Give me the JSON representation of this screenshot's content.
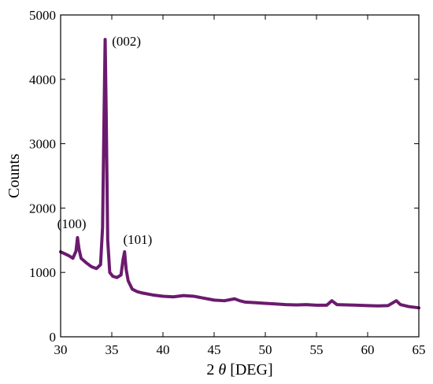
{
  "chart_data": {
    "type": "line",
    "title": "",
    "xlabel_prefix": "2 ",
    "xlabel_symbol": "θ",
    "xlabel_suffix": " [DEG]",
    "ylabel": "Counts",
    "xlim": [
      30,
      65
    ],
    "ylim": [
      0,
      5000
    ],
    "xticks": [
      30,
      35,
      40,
      45,
      50,
      55,
      60,
      65
    ],
    "yticks": [
      0,
      1000,
      2000,
      3000,
      4000,
      5000
    ],
    "grid": false,
    "line_color": "#6b1a6e",
    "series": [
      {
        "x": [
          30.0,
          30.4,
          30.8,
          31.2,
          31.5,
          31.65,
          31.8,
          32.0,
          32.5,
          33.0,
          33.5,
          33.9,
          34.1,
          34.25,
          34.35,
          34.45,
          34.6,
          34.8,
          35.1,
          35.5,
          35.9,
          36.1,
          36.25,
          36.4,
          36.6,
          37.0,
          37.5,
          38.0,
          39.0,
          40.0,
          41.0,
          42.0,
          43.0,
          44.0,
          45.0,
          46.0,
          47.0,
          47.5,
          48.0,
          49.0,
          50.0,
          51.0,
          52.0,
          53.0,
          54.0,
          55.0,
          56.0,
          56.5,
          57.0,
          58.0,
          59.0,
          60.0,
          61.0,
          62.0,
          62.8,
          63.2,
          64.0,
          65.0
        ],
        "y": [
          1320,
          1290,
          1260,
          1220,
          1330,
          1540,
          1360,
          1220,
          1150,
          1090,
          1060,
          1120,
          1700,
          3500,
          4620,
          3500,
          1500,
          1000,
          940,
          920,
          960,
          1200,
          1320,
          1050,
          870,
          740,
          700,
          680,
          650,
          630,
          620,
          640,
          630,
          600,
          570,
          560,
          590,
          560,
          540,
          530,
          520,
          510,
          500,
          495,
          500,
          490,
          490,
          560,
          500,
          495,
          490,
          485,
          480,
          485,
          560,
          500,
          470,
          450
        ]
      }
    ],
    "annotations": [
      {
        "text": "(100)",
        "x": 31.7,
        "y": 1540
      },
      {
        "text": "(002)",
        "x": 34.4,
        "y": 4620
      },
      {
        "text": "(101)",
        "x": 36.3,
        "y": 1320
      }
    ]
  }
}
